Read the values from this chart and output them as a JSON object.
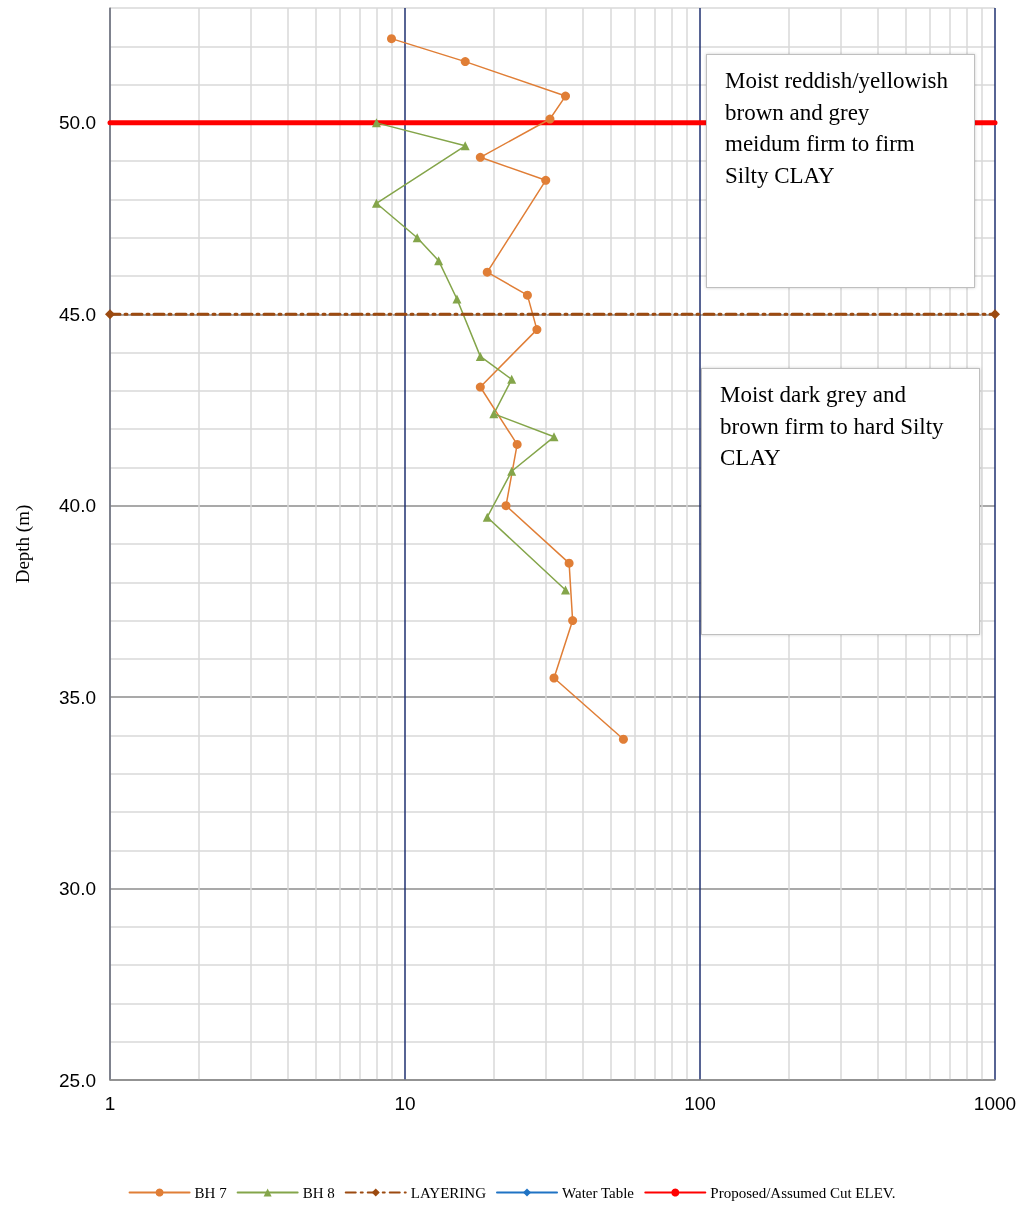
{
  "chart_data": {
    "type": "line",
    "ylabel": "Depth (m)",
    "log": "x",
    "grid": true,
    "legend": "bottom",
    "xlim": [
      1,
      1000
    ],
    "xticks": [
      1,
      {
        "value": 2,
        "label": null
      },
      {
        "value": 3,
        "label": null
      },
      {
        "value": 4,
        "label": null
      },
      {
        "value": 5,
        "label": null
      },
      {
        "value": 6,
        "label": null
      },
      {
        "value": 7,
        "label": null
      },
      {
        "value": 8,
        "label": null
      },
      {
        "value": 9,
        "label": null
      },
      10,
      {
        "value": 20,
        "label": null
      },
      {
        "value": 30,
        "label": null
      },
      {
        "value": 40,
        "label": null
      },
      {
        "value": 50,
        "label": null
      },
      {
        "value": 60,
        "label": null
      },
      {
        "value": 70,
        "label": null
      },
      {
        "value": 80,
        "label": null
      },
      {
        "value": 90,
        "label": null
      },
      100,
      {
        "value": 200,
        "label": null
      },
      {
        "value": 300,
        "label": null
      },
      {
        "value": 400,
        "label": null
      },
      {
        "value": 500,
        "label": null
      },
      {
        "value": 600,
        "label": null
      },
      {
        "value": 700,
        "label": null
      },
      {
        "value": 800,
        "label": null
      },
      {
        "value": 900,
        "label": null
      },
      1000
    ],
    "ylim": [
      25,
      53
    ],
    "yticks": [
      {
        "value": 25,
        "label": "25.0"
      },
      {
        "value": 26,
        "label": null
      },
      {
        "value": 27,
        "label": null
      },
      {
        "value": 28,
        "label": null
      },
      {
        "value": 29,
        "label": null
      },
      {
        "value": 30,
        "label": "30.0"
      },
      {
        "value": 31,
        "label": null
      },
      {
        "value": 32,
        "label": null
      },
      {
        "value": 33,
        "label": null
      },
      {
        "value": 34,
        "label": null
      },
      {
        "value": 35,
        "label": "35.0"
      },
      {
        "value": 36,
        "label": null
      },
      {
        "value": 37,
        "label": null
      },
      {
        "value": 38,
        "label": null
      },
      {
        "value": 39,
        "label": null
      },
      {
        "value": 40,
        "label": "40.0"
      },
      {
        "value": 41,
        "label": null
      },
      {
        "value": 42,
        "label": null
      },
      {
        "value": 43,
        "label": null
      },
      {
        "value": 44,
        "label": null
      },
      {
        "value": 45,
        "label": "45.0"
      },
      {
        "value": 46,
        "label": null
      },
      {
        "value": 47,
        "label": null
      },
      {
        "value": 48,
        "label": null
      },
      {
        "value": 49,
        "label": null
      },
      {
        "value": 50,
        "label": "50.0"
      },
      {
        "value": 51,
        "label": null
      },
      {
        "value": 52,
        "label": null
      },
      {
        "value": 53,
        "label": null
      }
    ],
    "annotations": [
      "Moist reddish/yellowish brown and grey meidum firm to firm Silty CLAY",
      "Moist dark grey and brown firm to hard Silty CLAY"
    ],
    "series": [
      {
        "name": "BH 7",
        "color": "#e07e36",
        "marker": "circle",
        "line_style": "solid",
        "x": [
          9,
          16,
          35,
          31,
          18,
          30,
          19,
          26,
          28,
          18,
          24,
          22,
          36,
          37,
          32,
          55
        ],
        "values": [
          52.2,
          51.6,
          50.7,
          50.1,
          49.1,
          48.5,
          46.1,
          45.5,
          44.6,
          43.1,
          41.6,
          40.0,
          38.5,
          37.0,
          35.5,
          33.9
        ]
      },
      {
        "name": "BH 8",
        "color": "#84a54a",
        "marker": "triangle",
        "line_style": "solid",
        "x": [
          8,
          16,
          8,
          11,
          13,
          15,
          18,
          23,
          20,
          32,
          23,
          19,
          35
        ],
        "values": [
          50.0,
          49.4,
          47.9,
          47.0,
          46.4,
          45.4,
          43.9,
          43.3,
          42.4,
          41.8,
          40.9,
          39.7,
          37.8
        ]
      },
      {
        "name": "LAYERING",
        "color": "#9c4a10",
        "marker": "diamond",
        "line_style": "dashed",
        "x": [
          1,
          1000
        ],
        "values": [
          45,
          45
        ]
      },
      {
        "name": "Water Table",
        "color": "#1f73c4",
        "marker": "diamond",
        "line_style": "solid"
      },
      {
        "name": "Proposed/Assumed Cut ELEV.",
        "color": "#ff0000",
        "marker": "none",
        "line_style": "solid",
        "x": [
          1,
          1000
        ],
        "values": [
          50,
          50
        ]
      }
    ]
  }
}
